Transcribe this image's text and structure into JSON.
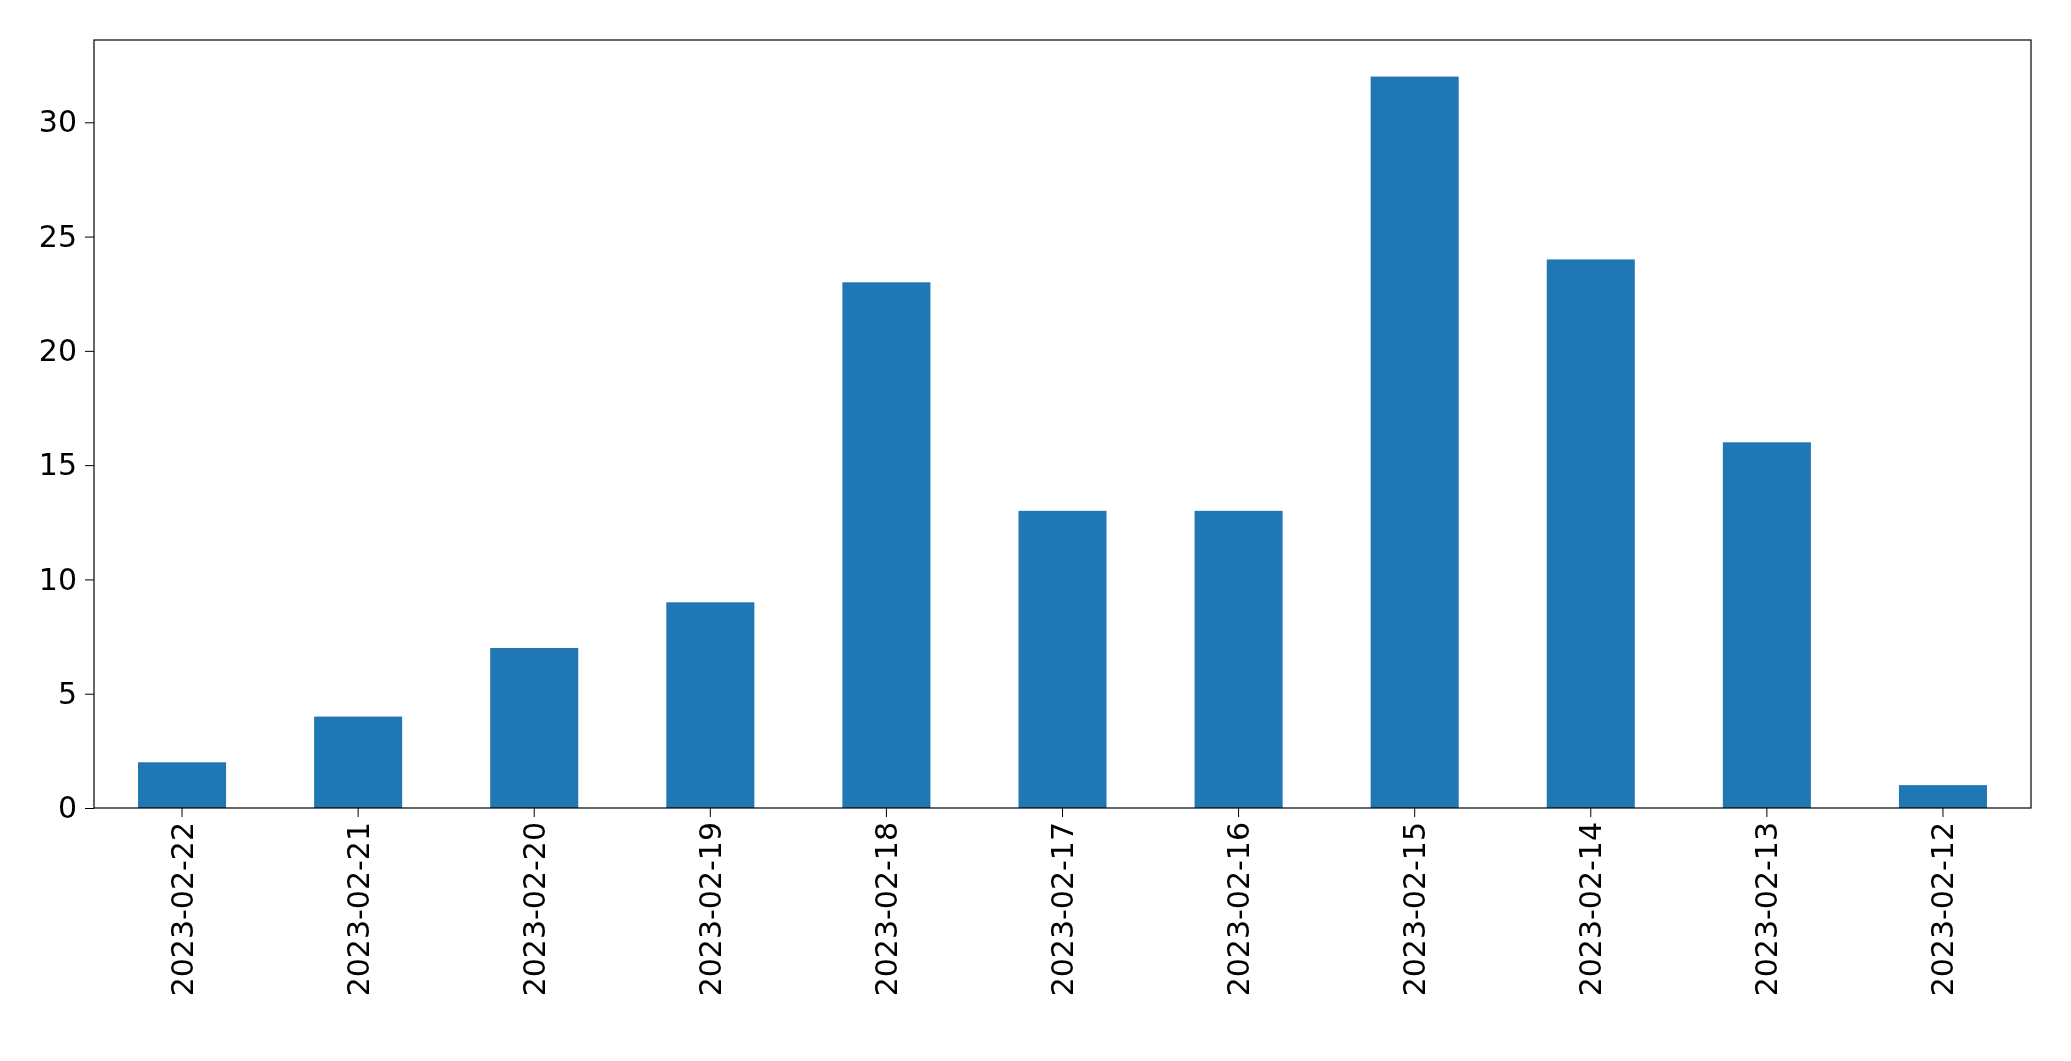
{
  "chart_data": {
    "type": "bar",
    "categories": [
      "2023-02-22",
      "2023-02-21",
      "2023-02-20",
      "2023-02-19",
      "2023-02-18",
      "2023-02-17",
      "2023-02-16",
      "2023-02-15",
      "2023-02-14",
      "2023-02-13",
      "2023-02-12"
    ],
    "values": [
      2,
      4,
      7,
      9,
      23,
      13,
      13,
      32,
      24,
      16,
      1
    ],
    "color": "#1f77b4",
    "ylim": [
      0,
      33.6
    ],
    "yticks": [
      0,
      5,
      10,
      15,
      20,
      25,
      30
    ],
    "grid": false
  }
}
